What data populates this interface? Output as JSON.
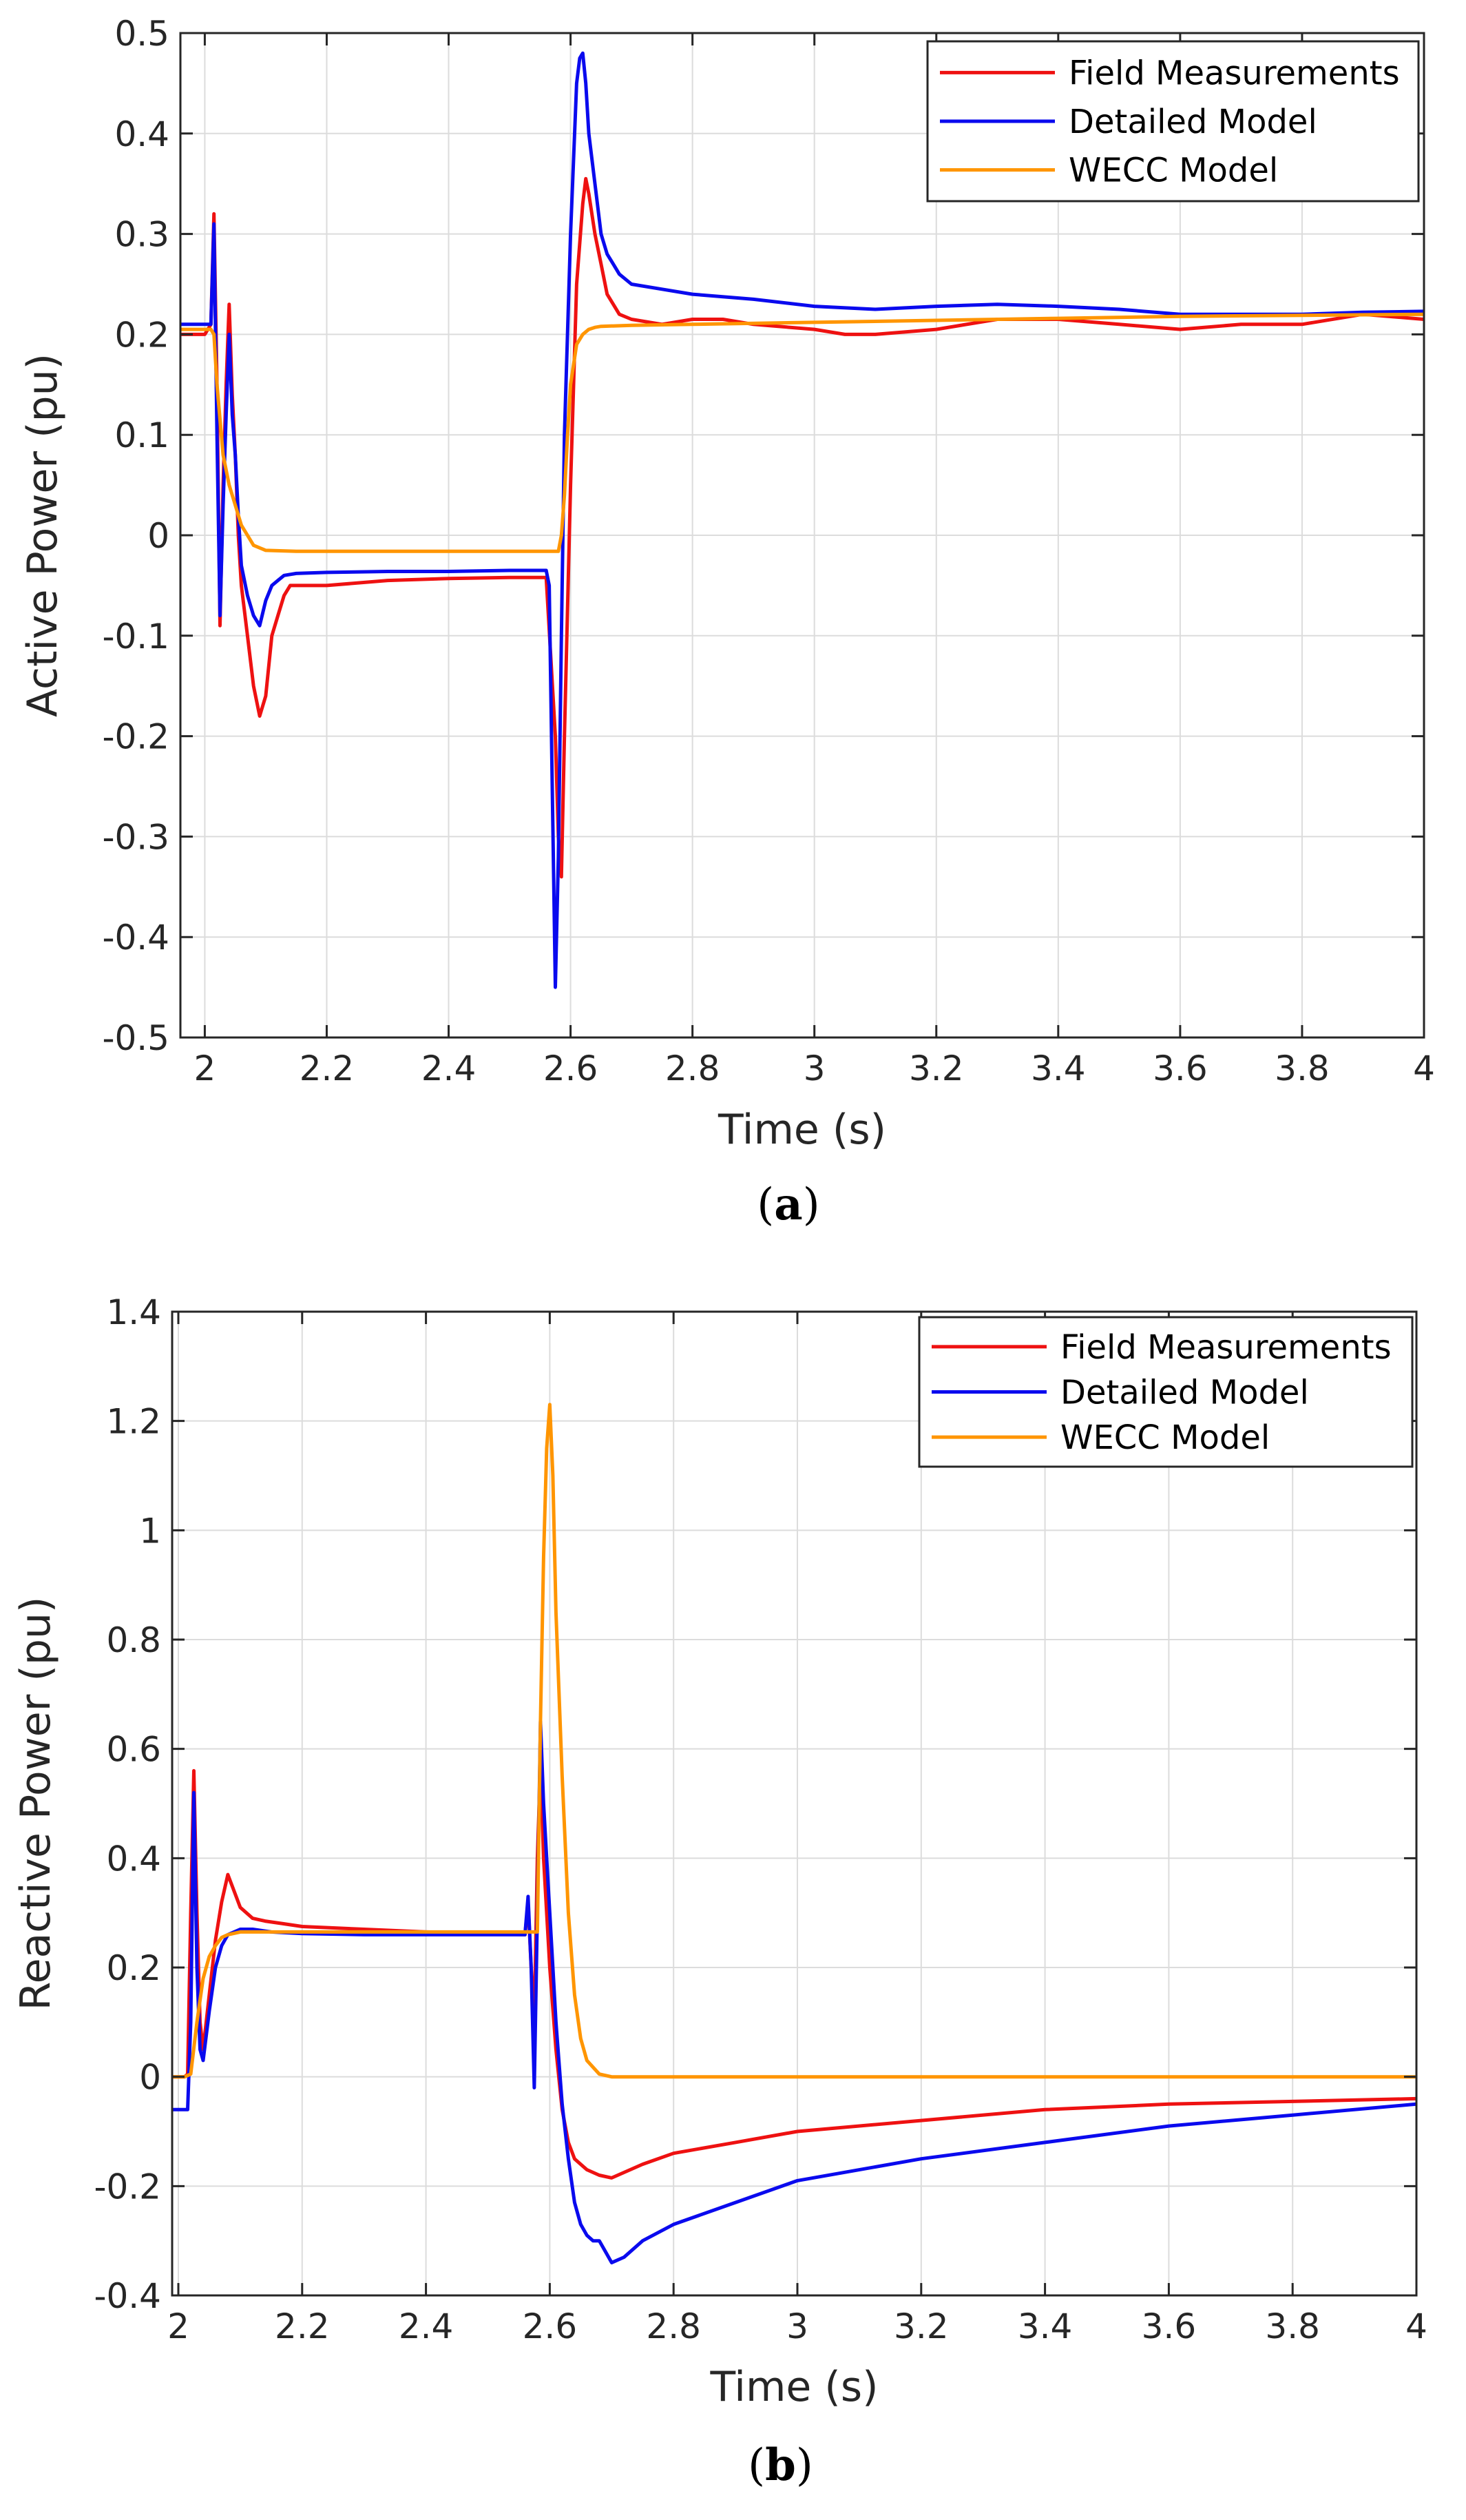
{
  "chart_data": [
    {
      "type": "line",
      "caption_open": "(",
      "caption_letter": "a",
      "caption_close": ")",
      "xlabel": "Time (s)",
      "ylabel": "Active Power (pu)",
      "xlim": [
        1.96,
        4.0
      ],
      "ylim": [
        -0.5,
        0.5
      ],
      "xticks": [
        2,
        2.2,
        2.4,
        2.6,
        2.8,
        3,
        3.2,
        3.4,
        3.6,
        3.8,
        4
      ],
      "xtick_labels": [
        "2",
        "2.2",
        "2.4",
        "2.6",
        "2.8",
        "3",
        "3.2",
        "3.4",
        "3.6",
        "3.8",
        "4"
      ],
      "yticks": [
        -0.5,
        -0.4,
        -0.3,
        -0.2,
        -0.1,
        0,
        0.1,
        0.2,
        0.3,
        0.4,
        0.5
      ],
      "ytick_labels": [
        "-0.5",
        "-0.4",
        "-0.3",
        "-0.2",
        "-0.1",
        "0",
        "0.1",
        "0.2",
        "0.3",
        "0.4",
        "0.5"
      ],
      "grid": true,
      "legend_position": "top-right",
      "series": [
        {
          "name": "Field Measurements",
          "color": "#ee1111",
          "x": [
            1.96,
            2.0,
            2.01,
            2.015,
            2.02,
            2.025,
            2.03,
            2.035,
            2.04,
            2.045,
            2.05,
            2.055,
            2.06,
            2.07,
            2.08,
            2.09,
            2.1,
            2.11,
            2.12,
            2.13,
            2.14,
            2.16,
            2.2,
            2.3,
            2.4,
            2.5,
            2.56,
            2.575,
            2.58,
            2.585,
            2.59,
            2.6,
            2.61,
            2.62,
            2.625,
            2.63,
            2.64,
            2.65,
            2.66,
            2.67,
            2.68,
            2.7,
            2.75,
            2.8,
            2.85,
            2.9,
            3.0,
            3.05,
            3.1,
            3.2,
            3.3,
            3.4,
            3.5,
            3.6,
            3.7,
            3.8,
            3.9,
            4.0
          ],
          "y": [
            0.2,
            0.2,
            0.21,
            0.32,
            0.15,
            -0.09,
            0.05,
            0.15,
            0.23,
            0.14,
            0.08,
            0.0,
            -0.05,
            -0.1,
            -0.15,
            -0.18,
            -0.16,
            -0.1,
            -0.08,
            -0.06,
            -0.05,
            -0.05,
            -0.05,
            -0.045,
            -0.043,
            -0.042,
            -0.042,
            -0.2,
            -0.3,
            -0.34,
            -0.2,
            0.05,
            0.25,
            0.33,
            0.355,
            0.34,
            0.3,
            0.27,
            0.24,
            0.23,
            0.22,
            0.215,
            0.21,
            0.215,
            0.215,
            0.21,
            0.205,
            0.2,
            0.2,
            0.205,
            0.215,
            0.215,
            0.21,
            0.205,
            0.21,
            0.21,
            0.22,
            0.215
          ]
        },
        {
          "name": "Detailed Model",
          "color": "#0a0aee",
          "x": [
            1.96,
            2.0,
            2.01,
            2.015,
            2.02,
            2.025,
            2.03,
            2.035,
            2.04,
            2.045,
            2.05,
            2.055,
            2.06,
            2.07,
            2.08,
            2.09,
            2.1,
            2.11,
            2.12,
            2.13,
            2.15,
            2.2,
            2.3,
            2.4,
            2.5,
            2.56,
            2.565,
            2.57,
            2.575,
            2.58,
            2.585,
            2.59,
            2.6,
            2.61,
            2.615,
            2.62,
            2.625,
            2.63,
            2.64,
            2.65,
            2.66,
            2.67,
            2.68,
            2.7,
            2.75,
            2.8,
            2.9,
            3.0,
            3.1,
            3.2,
            3.3,
            3.4,
            3.5,
            3.6,
            3.7,
            3.8,
            3.9,
            4.0
          ],
          "y": [
            0.21,
            0.21,
            0.21,
            0.31,
            0.1,
            -0.08,
            0.03,
            0.12,
            0.2,
            0.12,
            0.08,
            0.02,
            -0.03,
            -0.06,
            -0.08,
            -0.09,
            -0.065,
            -0.05,
            -0.045,
            -0.04,
            -0.038,
            -0.037,
            -0.036,
            -0.036,
            -0.035,
            -0.035,
            -0.05,
            -0.25,
            -0.45,
            -0.32,
            -0.1,
            0.1,
            0.3,
            0.45,
            0.475,
            0.48,
            0.45,
            0.4,
            0.35,
            0.3,
            0.28,
            0.27,
            0.26,
            0.25,
            0.245,
            0.24,
            0.235,
            0.228,
            0.225,
            0.228,
            0.23,
            0.228,
            0.225,
            0.22,
            0.22,
            0.22,
            0.222,
            0.223
          ]
        },
        {
          "name": "WECC Model",
          "color": "#ff9500",
          "x": [
            1.96,
            2.0,
            2.01,
            2.015,
            2.02,
            2.03,
            2.04,
            2.05,
            2.06,
            2.07,
            2.08,
            2.1,
            2.15,
            2.2,
            2.3,
            2.4,
            2.5,
            2.58,
            2.585,
            2.59,
            2.595,
            2.6,
            2.61,
            2.62,
            2.63,
            2.64,
            2.65,
            2.7,
            2.8,
            3.0,
            3.2,
            3.4,
            3.6,
            3.8,
            4.0
          ],
          "y": [
            0.205,
            0.205,
            0.205,
            0.2,
            0.15,
            0.08,
            0.05,
            0.03,
            0.01,
            0.0,
            -0.01,
            -0.015,
            -0.016,
            -0.016,
            -0.016,
            -0.016,
            -0.016,
            -0.016,
            0.0,
            0.04,
            0.1,
            0.15,
            0.19,
            0.2,
            0.205,
            0.207,
            0.208,
            0.209,
            0.21,
            0.212,
            0.214,
            0.216,
            0.218,
            0.219,
            0.22
          ]
        }
      ]
    },
    {
      "type": "line",
      "caption_open": "(",
      "caption_letter": "b",
      "caption_close": ")",
      "xlabel": "Time (s)",
      "ylabel": "Reactive Power (pu)",
      "xlim": [
        1.99,
        4.0
      ],
      "ylim": [
        -0.4,
        1.4
      ],
      "xticks": [
        2,
        2.2,
        2.4,
        2.6,
        2.8,
        3,
        3.2,
        3.4,
        3.6,
        3.8,
        4
      ],
      "xtick_labels": [
        "2",
        "2.2",
        "2.4",
        "2.6",
        "2.8",
        "3",
        "3.2",
        "3.4",
        "3.6",
        "3.8",
        "4"
      ],
      "yticks": [
        -0.4,
        -0.2,
        0,
        0.2,
        0.4,
        0.6,
        0.8,
        1,
        1.2,
        1.4
      ],
      "ytick_labels": [
        "-0.4",
        "-0.2",
        "0",
        "0.2",
        "0.4",
        "0.6",
        "0.8",
        "1",
        "1.2",
        "1.4"
      ],
      "grid": true,
      "legend_position": "top-right",
      "series": [
        {
          "name": "Field Measurements",
          "color": "#ee1111",
          "x": [
            1.99,
            2.0,
            2.01,
            2.015,
            2.02,
            2.025,
            2.03,
            2.035,
            2.04,
            2.05,
            2.06,
            2.07,
            2.08,
            2.09,
            2.1,
            2.12,
            2.14,
            2.17,
            2.2,
            2.3,
            2.4,
            2.5,
            2.56,
            2.565,
            2.57,
            2.575,
            2.58,
            2.585,
            2.59,
            2.6,
            2.61,
            2.62,
            2.63,
            2.64,
            2.65,
            2.66,
            2.68,
            2.7,
            2.75,
            2.8,
            2.9,
            3.0,
            3.2,
            3.4,
            3.6,
            3.8,
            4.0
          ],
          "y": [
            0.0,
            0.0,
            0.0,
            0.005,
            0.3,
            0.56,
            0.3,
            0.1,
            0.05,
            0.15,
            0.25,
            0.32,
            0.37,
            0.34,
            0.31,
            0.29,
            0.285,
            0.28,
            0.275,
            0.27,
            0.265,
            0.262,
            0.26,
            0.32,
            0.2,
            0.1,
            0.4,
            0.57,
            0.4,
            0.2,
            0.05,
            -0.06,
            -0.12,
            -0.15,
            -0.16,
            -0.17,
            -0.18,
            -0.185,
            -0.16,
            -0.14,
            -0.12,
            -0.1,
            -0.08,
            -0.06,
            -0.05,
            -0.045,
            -0.04
          ]
        },
        {
          "name": "Detailed Model",
          "color": "#0a0aee",
          "x": [
            1.99,
            2.0,
            2.01,
            2.015,
            2.02,
            2.025,
            2.03,
            2.035,
            2.04,
            2.05,
            2.06,
            2.07,
            2.08,
            2.1,
            2.12,
            2.15,
            2.2,
            2.3,
            2.4,
            2.5,
            2.55,
            2.56,
            2.565,
            2.57,
            2.575,
            2.58,
            2.585,
            2.59,
            2.6,
            2.61,
            2.62,
            2.63,
            2.64,
            2.65,
            2.66,
            2.67,
            2.68,
            2.69,
            2.7,
            2.72,
            2.75,
            2.8,
            2.9,
            3.0,
            3.2,
            3.4,
            3.6,
            3.8,
            4.0
          ],
          "y": [
            -0.06,
            -0.06,
            -0.06,
            -0.06,
            0.1,
            0.52,
            0.2,
            0.05,
            0.03,
            0.12,
            0.2,
            0.24,
            0.26,
            0.27,
            0.27,
            0.265,
            0.262,
            0.26,
            0.26,
            0.26,
            0.26,
            0.26,
            0.33,
            0.2,
            -0.02,
            0.3,
            0.65,
            0.5,
            0.3,
            0.1,
            -0.05,
            -0.15,
            -0.23,
            -0.27,
            -0.29,
            -0.3,
            -0.3,
            -0.32,
            -0.34,
            -0.33,
            -0.3,
            -0.27,
            -0.23,
            -0.19,
            -0.15,
            -0.12,
            -0.09,
            -0.07,
            -0.05
          ]
        },
        {
          "name": "WECC Model",
          "color": "#ff9500",
          "x": [
            1.99,
            2.0,
            2.01,
            2.02,
            2.03,
            2.04,
            2.05,
            2.06,
            2.07,
            2.08,
            2.1,
            2.15,
            2.2,
            2.3,
            2.4,
            2.5,
            2.58,
            2.585,
            2.59,
            2.595,
            2.6,
            2.605,
            2.61,
            2.62,
            2.63,
            2.64,
            2.65,
            2.66,
            2.68,
            2.7,
            2.8,
            3.0,
            3.5,
            4.0
          ],
          "y": [
            0.0,
            0.0,
            0.0,
            0.005,
            0.1,
            0.18,
            0.22,
            0.24,
            0.255,
            0.26,
            0.265,
            0.265,
            0.265,
            0.265,
            0.265,
            0.265,
            0.265,
            0.65,
            0.95,
            1.15,
            1.23,
            1.1,
            0.85,
            0.55,
            0.3,
            0.15,
            0.07,
            0.03,
            0.005,
            0.0,
            0.0,
            0.0,
            0.0,
            0.0
          ]
        }
      ]
    }
  ]
}
